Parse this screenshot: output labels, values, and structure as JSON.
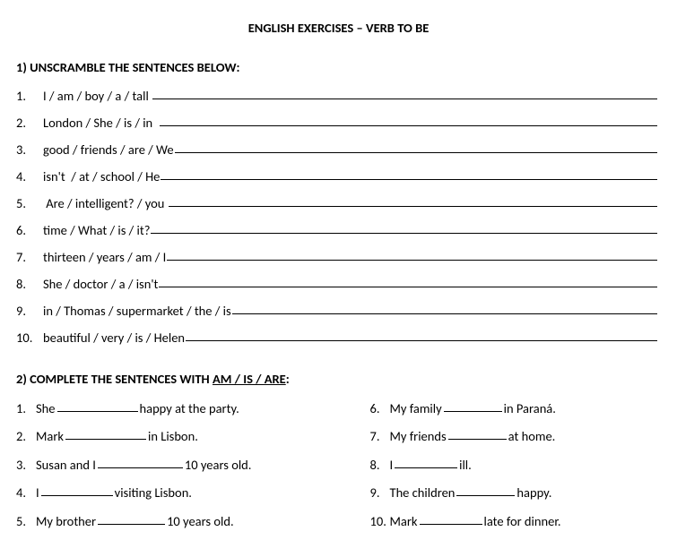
{
  "title": "ENGLISH EXERCISES – VERB TO BE",
  "section1": {
    "heading": "1) UNSCRAMBLE THE SENTENCES BELOW:",
    "items": [
      {
        "num": "1.",
        "text": "I / am / boy / a / tall "
      },
      {
        "num": "2.",
        "text": "London / She / is / in  "
      },
      {
        "num": "3.",
        "text": "good / friends / are / We"
      },
      {
        "num": "4.",
        "text": "isn't  / at / school / He"
      },
      {
        "num": "5.",
        "text": " Are / intelligent? / you "
      },
      {
        "num": "6.",
        "text": "time / What / is / it?"
      },
      {
        "num": "7.",
        "text": "thirteen / years / am / I"
      },
      {
        "num": "8.",
        "text": "She / doctor / a / isn't"
      },
      {
        "num": "9.",
        "text": "in / Thomas / supermarket / the / is"
      },
      {
        "num": "10.",
        "text": "beautiful / very / is / Helen"
      }
    ]
  },
  "section2": {
    "heading_pre": "2) COMPLETE THE SENTENCES WITH ",
    "heading_underlined": "AM / IS / ARE",
    "heading_post": ":",
    "left": [
      {
        "num": "1.",
        "pre": "She ",
        "blank_w": 90,
        "post": " happy at the party."
      },
      {
        "num": "2.",
        "pre": "Mark ",
        "blank_w": 90,
        "post": " in Lisbon."
      },
      {
        "num": "3.",
        "pre": "Susan and I ",
        "blank_w": 95,
        "post": " 10 years old."
      },
      {
        "num": "4.",
        "pre": "I ",
        "blank_w": 80,
        "post": " visiting Lisbon."
      },
      {
        "num": "5.",
        "pre": "My brother ",
        "blank_w": 75,
        "post": " 10 years old."
      }
    ],
    "right": [
      {
        "num": "6.",
        "pre": "My family ",
        "blank_w": 65,
        "post": " in Paraná."
      },
      {
        "num": "7.",
        "pre": "My friends ",
        "blank_w": 65,
        "post": " at home."
      },
      {
        "num": "8.",
        "pre": "  I ",
        "blank_w": 70,
        "post": " ill."
      },
      {
        "num": "9.",
        "pre": "The children ",
        "blank_w": 65,
        "post": " happy."
      },
      {
        "num": "10.",
        "pre": "Mark ",
        "blank_w": 70,
        "post": " late for dinner."
      }
    ]
  }
}
